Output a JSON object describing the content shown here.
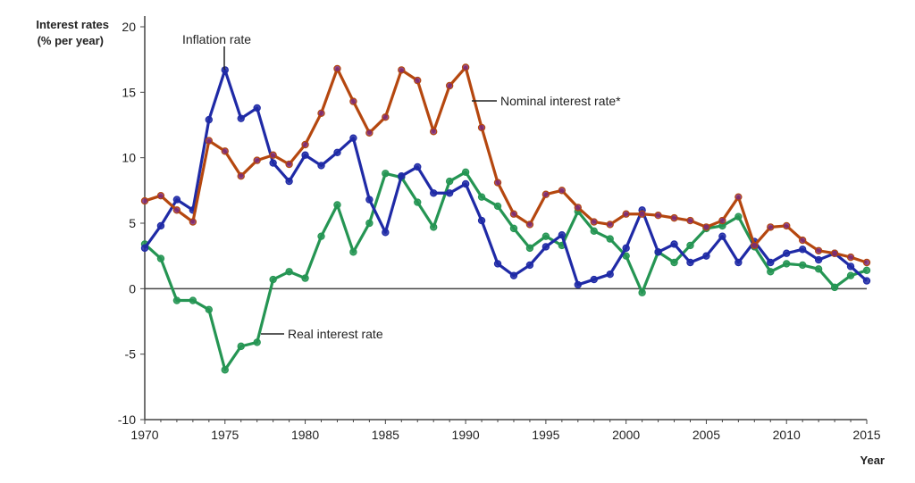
{
  "chart_data": {
    "type": "line",
    "ylabel_line1": "Interest rates",
    "ylabel_line2": "(% per year)",
    "xlabel": "Year",
    "xlim": [
      1970,
      2015
    ],
    "ylim": [
      -10,
      20
    ],
    "xticks": [
      "1970",
      "1975",
      "1980",
      "1985",
      "1990",
      "1995",
      "2000",
      "2005",
      "2010",
      "2015"
    ],
    "yticks": [
      "20",
      "15",
      "10",
      "5",
      "0",
      "-5",
      "-10"
    ],
    "grid": false,
    "x": [
      1970,
      1971,
      1972,
      1973,
      1974,
      1975,
      1976,
      1977,
      1978,
      1979,
      1980,
      1981,
      1982,
      1983,
      1984,
      1985,
      1986,
      1987,
      1988,
      1989,
      1990,
      1991,
      1992,
      1993,
      1994,
      1995,
      1996,
      1997,
      1998,
      1999,
      2000,
      2001,
      2002,
      2003,
      2004,
      2005,
      2006,
      2007,
      2008,
      2009,
      2010,
      2011,
      2012,
      2013,
      2014,
      2015
    ],
    "series": [
      {
        "name": "Nominal interest rate*",
        "color": "#b5470f",
        "values": [
          6.7,
          7.1,
          6.0,
          5.1,
          11.3,
          10.5,
          8.6,
          9.8,
          10.2,
          9.5,
          11.0,
          13.4,
          16.8,
          14.3,
          11.9,
          13.1,
          16.7,
          15.9,
          12.0,
          15.5,
          16.9,
          12.3,
          8.1,
          5.7,
          4.9,
          7.2,
          7.5,
          6.2,
          5.1,
          4.9,
          5.7,
          5.7,
          5.6,
          5.4,
          5.2,
          4.7,
          5.2,
          7.0,
          3.3,
          4.7,
          4.8,
          3.7,
          2.9,
          2.7,
          2.4,
          2.0
        ]
      },
      {
        "name": "Inflation rate",
        "color": "#1f2aa6",
        "values": [
          3.1,
          4.8,
          6.8,
          6.0,
          12.9,
          16.7,
          13.0,
          13.8,
          9.6,
          8.2,
          10.2,
          9.4,
          10.4,
          11.5,
          6.8,
          4.3,
          8.6,
          9.3,
          7.3,
          7.3,
          8.0,
          5.2,
          1.9,
          1.0,
          1.8,
          3.2,
          4.1,
          0.3,
          0.7,
          1.1,
          3.1,
          6.0,
          2.8,
          3.4,
          2.0,
          2.5,
          4.0,
          2.0,
          3.6,
          2.0,
          2.7,
          3.0,
          2.2,
          2.7,
          1.7,
          0.6
        ]
      },
      {
        "name": "Real interest rate",
        "color": "#259553",
        "values": [
          3.4,
          2.3,
          -0.9,
          -0.9,
          -1.6,
          -6.2,
          -4.4,
          -4.1,
          0.7,
          1.3,
          0.8,
          4.0,
          6.4,
          2.8,
          5.0,
          8.8,
          8.5,
          6.6,
          4.7,
          8.2,
          8.9,
          7.0,
          6.3,
          4.6,
          3.1,
          4.0,
          3.3,
          5.9,
          4.4,
          3.8,
          2.5,
          -0.3,
          2.8,
          2.0,
          3.3,
          4.6,
          4.8,
          5.5,
          3.2,
          1.3,
          1.9,
          1.8,
          1.5,
          0.1,
          1.0,
          1.4
        ]
      }
    ],
    "marker_color": "#7a2a7a"
  }
}
